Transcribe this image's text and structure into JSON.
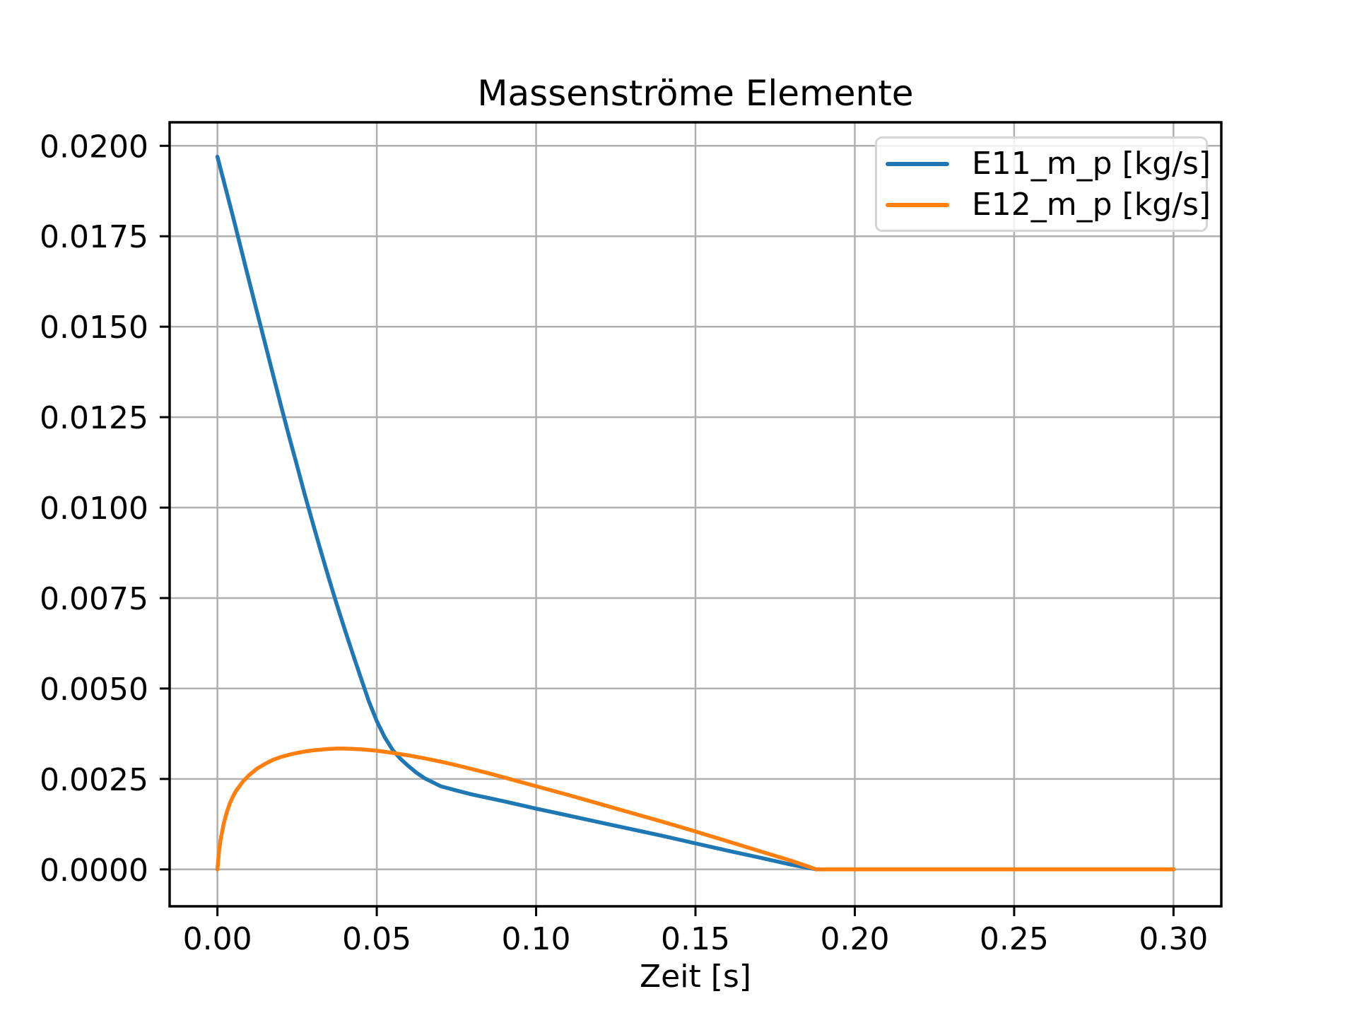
{
  "chart_data": {
    "type": "line",
    "title": "Massenströme Elemente",
    "xlabel": "Zeit [s]",
    "ylabel": "",
    "grid": true,
    "legend_position": "upper right",
    "background": "#ffffff",
    "grid_color": "#b0b0b0",
    "spine_color": "#000000",
    "xlim": [
      -0.015,
      0.315
    ],
    "ylim": [
      -0.00102,
      0.02065
    ],
    "x_ticks": [
      0.0,
      0.05,
      0.1,
      0.15,
      0.2,
      0.25,
      0.3
    ],
    "x_tick_labels": [
      "0.00",
      "0.05",
      "0.10",
      "0.15",
      "0.20",
      "0.25",
      "0.30"
    ],
    "y_ticks": [
      0.0,
      0.0025,
      0.005,
      0.0075,
      0.01,
      0.0125,
      0.015,
      0.0175,
      0.02
    ],
    "y_tick_labels": [
      "0.0000",
      "0.0025",
      "0.0050",
      "0.0075",
      "0.0100",
      "0.0125",
      "0.0150",
      "0.0175",
      "0.0200"
    ],
    "series": [
      {
        "name": "E11_m_p [kg/s]",
        "color": "#1f77b4",
        "points": [
          [
            0.0,
            0.0197
          ],
          [
            0.0025,
            0.01885
          ],
          [
            0.005,
            0.018
          ],
          [
            0.0075,
            0.01712
          ],
          [
            0.01,
            0.01625
          ],
          [
            0.0125,
            0.01538
          ],
          [
            0.015,
            0.01452
          ],
          [
            0.0175,
            0.01366
          ],
          [
            0.02,
            0.0128
          ],
          [
            0.0225,
            0.01196
          ],
          [
            0.025,
            0.01115
          ],
          [
            0.0275,
            0.01033
          ],
          [
            0.03,
            0.00955
          ],
          [
            0.0325,
            0.00878
          ],
          [
            0.035,
            0.00803
          ],
          [
            0.0375,
            0.00731
          ],
          [
            0.04,
            0.00662
          ],
          [
            0.0425,
            0.00595
          ],
          [
            0.045,
            0.0053
          ],
          [
            0.0475,
            0.00465
          ],
          [
            0.05,
            0.0041
          ],
          [
            0.0525,
            0.00365
          ],
          [
            0.055,
            0.0033
          ],
          [
            0.0575,
            0.00305
          ],
          [
            0.06,
            0.00285
          ],
          [
            0.0625,
            0.00267
          ],
          [
            0.065,
            0.00252
          ],
          [
            0.07,
            0.0023
          ],
          [
            0.075,
            0.00218
          ],
          [
            0.08,
            0.00207
          ],
          [
            0.09,
            0.00188
          ],
          [
            0.1,
            0.00168
          ],
          [
            0.11,
            0.00149
          ],
          [
            0.12,
            0.0013
          ],
          [
            0.13,
            0.00111
          ],
          [
            0.14,
            0.00092
          ],
          [
            0.15,
            0.00072
          ],
          [
            0.16,
            0.00052
          ],
          [
            0.17,
            0.00033
          ],
          [
            0.18,
            0.00013
          ],
          [
            0.188,
            0.0
          ],
          [
            0.19,
            0.0
          ],
          [
            0.2,
            0.0
          ],
          [
            0.25,
            0.0
          ],
          [
            0.3,
            0.0
          ]
        ]
      },
      {
        "name": "E12_m_p [kg/s]",
        "color": "#ff7f0e",
        "points": [
          [
            0.0,
            0.0
          ],
          [
            0.0005,
            0.0005
          ],
          [
            0.001,
            0.00082
          ],
          [
            0.002,
            0.00128
          ],
          [
            0.003,
            0.0016
          ],
          [
            0.004,
            0.00185
          ],
          [
            0.005,
            0.00204
          ],
          [
            0.006,
            0.00219
          ],
          [
            0.008,
            0.00243
          ],
          [
            0.01,
            0.00261
          ],
          [
            0.0125,
            0.00279
          ],
          [
            0.015,
            0.00292
          ],
          [
            0.0175,
            0.00303
          ],
          [
            0.02,
            0.00311
          ],
          [
            0.0225,
            0.00317
          ],
          [
            0.025,
            0.00322
          ],
          [
            0.0275,
            0.00326
          ],
          [
            0.03,
            0.00329
          ],
          [
            0.0325,
            0.00331
          ],
          [
            0.035,
            0.00333
          ],
          [
            0.0375,
            0.00334
          ],
          [
            0.04,
            0.00334
          ],
          [
            0.0425,
            0.00333
          ],
          [
            0.045,
            0.00332
          ],
          [
            0.05,
            0.00328
          ],
          [
            0.055,
            0.00322
          ],
          [
            0.06,
            0.00315
          ],
          [
            0.065,
            0.00307
          ],
          [
            0.07,
            0.00298
          ],
          [
            0.075,
            0.00288
          ],
          [
            0.08,
            0.00277
          ],
          [
            0.085,
            0.00266
          ],
          [
            0.09,
            0.00254
          ],
          [
            0.095,
            0.00242
          ],
          [
            0.1,
            0.0023
          ],
          [
            0.11,
            0.00206
          ],
          [
            0.12,
            0.00181
          ],
          [
            0.13,
            0.00156
          ],
          [
            0.14,
            0.00131
          ],
          [
            0.15,
            0.00105
          ],
          [
            0.16,
            0.00078
          ],
          [
            0.17,
            0.00051
          ],
          [
            0.18,
            0.00024
          ],
          [
            0.188,
            0.0
          ],
          [
            0.19,
            0.0
          ],
          [
            0.2,
            0.0
          ],
          [
            0.25,
            0.0
          ],
          [
            0.3,
            0.0
          ]
        ]
      }
    ]
  }
}
